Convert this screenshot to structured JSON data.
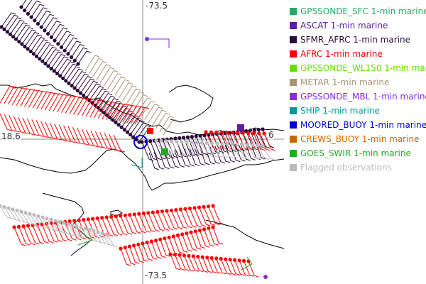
{
  "map": {
    "coordinate_labels": {
      "top_longitude": "-73.5",
      "bottom_longitude": "-73.5",
      "left_latitude": "18.6",
      "right_latitude": "6"
    },
    "colors": {
      "coastline": "#000000",
      "gridline": "#888888",
      "ascat": "#5B1F9E",
      "sfmr_afrc": "#2B0A3A",
      "afrc": "#FF0000",
      "gpssonde_wl150": "#66DD00",
      "metar": "#A89474",
      "gpssonde_mbl": "#8A2BE2",
      "flagged": "#BBBBBB",
      "moored_buoy": "#0000CC",
      "gpssonde_sfc": "#22AA66",
      "goes_swir": "#22AA22",
      "crews_buoy": "#CC6600",
      "ship": "#009999"
    }
  },
  "legend": {
    "items": [
      {
        "label": "GPSSONDE_SFC 1-min marine",
        "color": "#22AA66",
        "name": "legend-item-gpssonde-sfc"
      },
      {
        "label": "ASCAT 1-min marine",
        "color": "#5B1F9E",
        "name": "legend-item-ascat"
      },
      {
        "label": "SFMR_AFRC 1-min marine",
        "color": "#2B0A3A",
        "name": "legend-item-sfmr-afrc"
      },
      {
        "label": "AFRC 1-min marine",
        "color": "#FF0000",
        "name": "legend-item-afrc"
      },
      {
        "label": "GPSSONDE_WL150 1-min marine",
        "color": "#66DD00",
        "name": "legend-item-gpssonde-wl150"
      },
      {
        "label": "METAR 1-min marine",
        "color": "#A89474",
        "name": "legend-item-metar"
      },
      {
        "label": "GPSSONDE_MBL 1-min marine",
        "color": "#8A2BE2",
        "name": "legend-item-gpssonde-mbl"
      },
      {
        "label": "SHIP 1-min marine",
        "color": "#009999",
        "name": "legend-item-ship"
      },
      {
        "label": "MOORED_BUOY 1-min marine",
        "color": "#0000CC",
        "name": "legend-item-moored-buoy"
      },
      {
        "label": "CREWS_BUOY 1-min marine",
        "color": "#CC6600",
        "name": "legend-item-crews-buoy"
      },
      {
        "label": "GOES_SWIR 1-min marine",
        "color": "#22AA22",
        "name": "legend-item-goes-swir"
      },
      {
        "label": "Flagged observations",
        "color": "#BBBBBB",
        "name": "legend-item-flagged"
      }
    ]
  }
}
